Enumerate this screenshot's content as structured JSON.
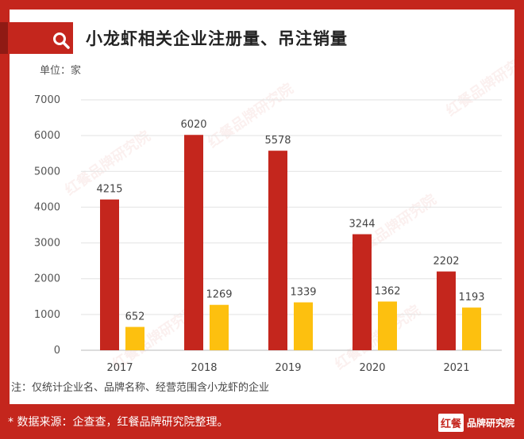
{
  "title": "小龙虾相关企业注册量、吊注销量",
  "unit": "单位：家",
  "note": "注：仅统计企业名、品牌名称、经营范围含小龙虾的企业",
  "source": "* 数据来源：企查查，红餐品牌研究院整理。",
  "brand": {
    "mark": "红餐",
    "name": "品牌研究院"
  },
  "watermark": "红餐品牌研究院",
  "colors": {
    "registered": "#c4261d",
    "cancelled": "#fdc00f",
    "frame": "#c4261d"
  },
  "chart_data": {
    "type": "bar",
    "categories": [
      "2017",
      "2018",
      "2019",
      "2020",
      "2021"
    ],
    "series": [
      {
        "values": [
          4215,
          6020,
          5578,
          3244,
          2202
        ]
      },
      {
        "values": [
          652,
          1269,
          1339,
          1362,
          1193
        ]
      }
    ],
    "yticks": [
      "0",
      "1000",
      "2000",
      "3000",
      "4000",
      "5000",
      "6000",
      "7000"
    ],
    "ylim": [
      0,
      7000
    ],
    "grid": true
  }
}
